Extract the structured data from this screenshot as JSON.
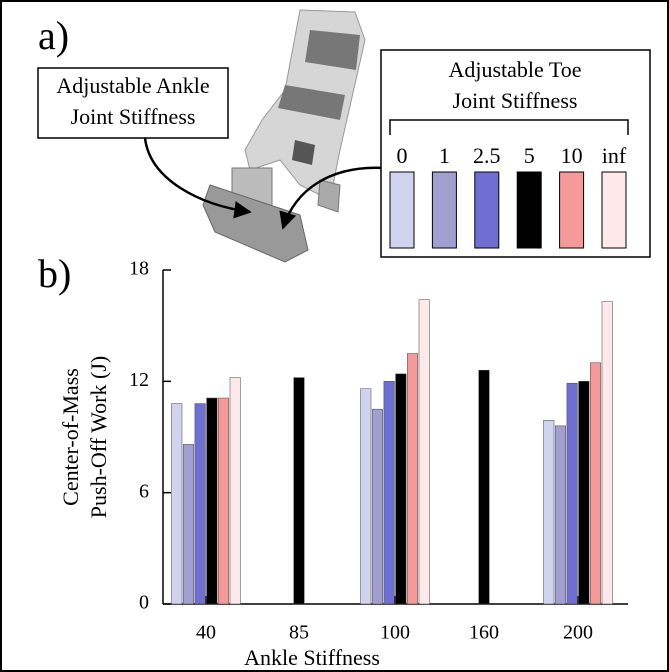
{
  "panel_labels": [
    "a)",
    "b)"
  ],
  "annotations": {
    "ankle": [
      "Adjustable Ankle",
      "Joint Stiffness"
    ]
  },
  "chart_data": {
    "type": "bar",
    "categories": [
      "40",
      "85",
      "100",
      "160",
      "200"
    ],
    "legend_title": [
      "Adjustable Toe",
      "Joint Stiffness"
    ],
    "series": [
      {
        "name": "0",
        "color": "#d0d3ee",
        "values": [
          10.8,
          null,
          11.6,
          null,
          9.9
        ]
      },
      {
        "name": "1",
        "color": "#a19fcf",
        "values": [
          8.6,
          null,
          10.5,
          null,
          9.6
        ]
      },
      {
        "name": "2.5",
        "color": "#6f6fd2",
        "values": [
          10.8,
          null,
          12.0,
          null,
          11.9
        ]
      },
      {
        "name": "5",
        "color": "#000000",
        "values": [
          11.1,
          12.2,
          12.4,
          12.6,
          12.0
        ]
      },
      {
        "name": "10",
        "color": "#f49a9a",
        "values": [
          11.1,
          null,
          13.5,
          null,
          13.0
        ]
      },
      {
        "name": "inf",
        "color": "#fde8ea",
        "values": [
          12.2,
          null,
          16.4,
          null,
          16.3
        ]
      }
    ],
    "ylim": [
      0,
      18
    ],
    "yticks": [
      0,
      6,
      12,
      18
    ],
    "xlabel": "Ankle Stiffness",
    "ylabel": [
      "Center-of-Mass",
      "Push-Off Work (J)"
    ]
  }
}
